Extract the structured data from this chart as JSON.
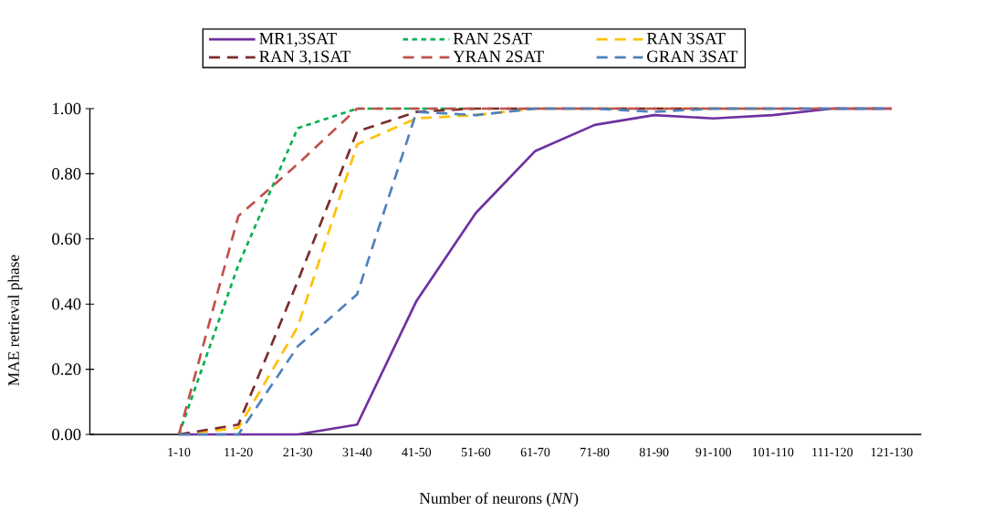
{
  "chart_data": {
    "type": "line",
    "xlabel": "Number of neurons (*NN*)",
    "ylabel": "MAE retrieval phase",
    "categories": [
      null,
      "1-10",
      "11-20",
      "21-30",
      "31-40",
      "41-50",
      "51-60",
      "61-70",
      "71-80",
      "81-90",
      "91-100",
      "101-110",
      "111-120",
      "121-130"
    ],
    "ylim": [
      0,
      1
    ],
    "yticks": [
      {
        "value": 0,
        "label": "0.00"
      },
      {
        "value": 0.2,
        "label": "0.20"
      },
      {
        "value": 0.4,
        "label": "0.40"
      },
      {
        "value": 0.6,
        "label": "0.60"
      },
      {
        "value": 0.8,
        "label": "0.80"
      },
      {
        "value": 1,
        "label": "1.00"
      }
    ],
    "grid": false,
    "legend": "top",
    "marker": "none",
    "series": [
      {
        "name": "MR1,3SAT",
        "color": "#7030a0",
        "line_style": "solid",
        "values": [
          null,
          0,
          0,
          0,
          0.03,
          0.41,
          0.68,
          0.87,
          0.95,
          0.98,
          0.97,
          0.98,
          1.0,
          1.0
        ]
      },
      {
        "name": "RAN 2SAT",
        "color": "#00b050",
        "line_style": "dotted",
        "values": [
          null,
          0,
          0.52,
          0.94,
          1.0,
          1.0,
          1.0,
          null,
          null,
          null,
          null,
          null,
          null,
          null
        ]
      },
      {
        "name": "RAN 3SAT",
        "color": "#ffc000",
        "line_style": "dashed",
        "values": [
          null,
          0,
          0.02,
          0.33,
          0.89,
          0.97,
          0.98,
          1.0,
          1.0,
          1.0,
          1.0,
          1.0,
          null,
          null
        ]
      },
      {
        "name": "RAN 3,1SAT",
        "color": "#7b2c2c",
        "line_style": "dashed",
        "values": [
          null,
          0,
          0.03,
          0.47,
          0.93,
          0.99,
          1.0,
          1.0,
          1.0,
          1.0,
          1.0,
          1.0,
          1.0,
          1.0
        ]
      },
      {
        "name": "YRAN 2SAT",
        "color": "#c0504d",
        "line_style": "dashed",
        "values": [
          null,
          0,
          0.67,
          0.83,
          1.0,
          1.0,
          1.0,
          1.0,
          1.0,
          1.0,
          1.0,
          1.0,
          1.0,
          1.0
        ]
      },
      {
        "name": "GRAN 3SAT",
        "color": "#4f81bd",
        "line_style": "dashed",
        "values": [
          null,
          0,
          0,
          0.27,
          0.43,
          0.99,
          0.98,
          1.0,
          1.0,
          0.99,
          1.0,
          1.0,
          1.0,
          1.0
        ]
      }
    ]
  }
}
